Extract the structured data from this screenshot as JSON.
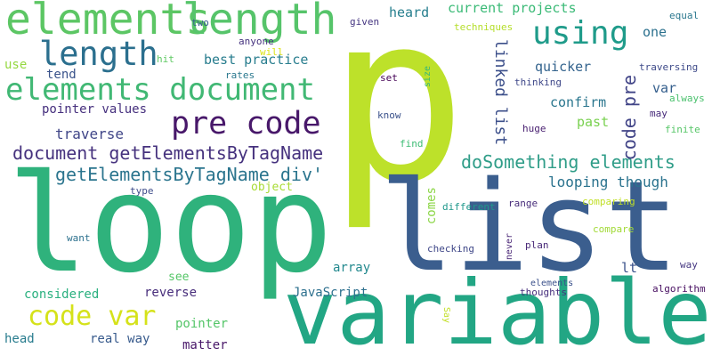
{
  "words": [
    {
      "text": "p",
      "color": "#bde12a"
    },
    {
      "text": "loop",
      "color": "#2fb27c"
    },
    {
      "text": "list",
      "color": "#3b5e8e"
    },
    {
      "text": "variable",
      "color": "#22a684"
    },
    {
      "text": "elements",
      "color": "#5cc664"
    },
    {
      "text": "length",
      "color": "#56c46a"
    },
    {
      "text": "length",
      "color": "#2b6f8e"
    },
    {
      "text": "using",
      "color": "#1f9b8a"
    },
    {
      "text": "elements document",
      "color": "#41b874"
    },
    {
      "text": "pre code",
      "color": "#48186a"
    },
    {
      "text": "code var",
      "color": "#d5e21a"
    },
    {
      "text": "document getElementsByTagName",
      "color": "#46327e"
    },
    {
      "text": "getElementsByTagName div'",
      "color": "#2b758e"
    },
    {
      "text": "doSomething elements",
      "color": "#2f9d88"
    },
    {
      "text": "looping though",
      "color": "#2b738e"
    },
    {
      "text": "linked list",
      "color": "#3c4f8a"
    },
    {
      "text": "code pre",
      "color": "#414487"
    },
    {
      "text": "current projects",
      "color": "#3aba76"
    },
    {
      "text": "best practice",
      "color": "#287d8e"
    },
    {
      "text": "heard",
      "color": "#277f8e"
    },
    {
      "text": "one",
      "color": "#2c718e"
    },
    {
      "text": "quicker",
      "color": "#33638d"
    },
    {
      "text": "confirm",
      "color": "#2a768e"
    },
    {
      "text": "past",
      "color": "#7ad151"
    },
    {
      "text": "var",
      "color": "#355f8d"
    },
    {
      "text": "traverse",
      "color": "#404688"
    },
    {
      "text": "pointer values",
      "color": "#46307e"
    },
    {
      "text": "tend",
      "color": "#3a538b"
    },
    {
      "text": "use",
      "color": "#95d840"
    },
    {
      "text": "traversing",
      "color": "#3e4a89"
    },
    {
      "text": "thinking",
      "color": "#3f4889"
    },
    {
      "text": "object",
      "color": "#a8db34"
    },
    {
      "text": "comes",
      "color": "#8bd646"
    },
    {
      "text": "array",
      "color": "#23898e"
    },
    {
      "text": "JavaScript",
      "color": "#2d708e"
    },
    {
      "text": "reverse",
      "color": "#472d7b"
    },
    {
      "text": "see",
      "color": "#55c667"
    },
    {
      "text": "considered",
      "color": "#2ab07f"
    },
    {
      "text": "pointer",
      "color": "#54c568"
    },
    {
      "text": "matter",
      "color": "#481769"
    },
    {
      "text": "real way",
      "color": "#375a8c"
    },
    {
      "text": "head",
      "color": "#287c8e"
    },
    {
      "text": "lt",
      "color": "#3b528b"
    },
    {
      "text": "different",
      "color": "#1f988b"
    },
    {
      "text": "checking",
      "color": "#3f4788"
    },
    {
      "text": "range",
      "color": "#472c7a"
    },
    {
      "text": "plan",
      "color": "#482878"
    },
    {
      "text": "never",
      "color": "#482475"
    },
    {
      "text": "elements",
      "color": "#3b518b"
    },
    {
      "text": "thoughts",
      "color": "#472f7d"
    },
    {
      "text": "algorithm",
      "color": "#470e61"
    },
    {
      "text": "way",
      "color": "#453781"
    },
    {
      "text": "Say",
      "color": "#c2df23"
    },
    {
      "text": "compare",
      "color": "#a2da37"
    },
    {
      "text": "comparing",
      "color": "#c0df25"
    },
    {
      "text": "want",
      "color": "#2d718e"
    },
    {
      "text": "type",
      "color": "#3e4c8a"
    },
    {
      "text": "size",
      "color": "#33b67a"
    },
    {
      "text": "set",
      "color": "#440154"
    },
    {
      "text": "know",
      "color": "#3b528b"
    },
    {
      "text": "find",
      "color": "#3dbc74"
    },
    {
      "text": "huge",
      "color": "#481f70"
    },
    {
      "text": "given",
      "color": "#453581"
    },
    {
      "text": "will",
      "color": "#dde318"
    },
    {
      "text": "anyone",
      "color": "#46337f"
    },
    {
      "text": "hit",
      "color": "#5ec962"
    },
    {
      "text": "rates",
      "color": "#2a788e"
    },
    {
      "text": "two",
      "color": "#365d8d"
    },
    {
      "text": "techniques",
      "color": "#b5de2b"
    },
    {
      "text": "equal",
      "color": "#2a778e"
    },
    {
      "text": "always",
      "color": "#4ac16d"
    },
    {
      "text": "may",
      "color": "#472a7a"
    },
    {
      "text": "finite",
      "color": "#56c667"
    }
  ]
}
